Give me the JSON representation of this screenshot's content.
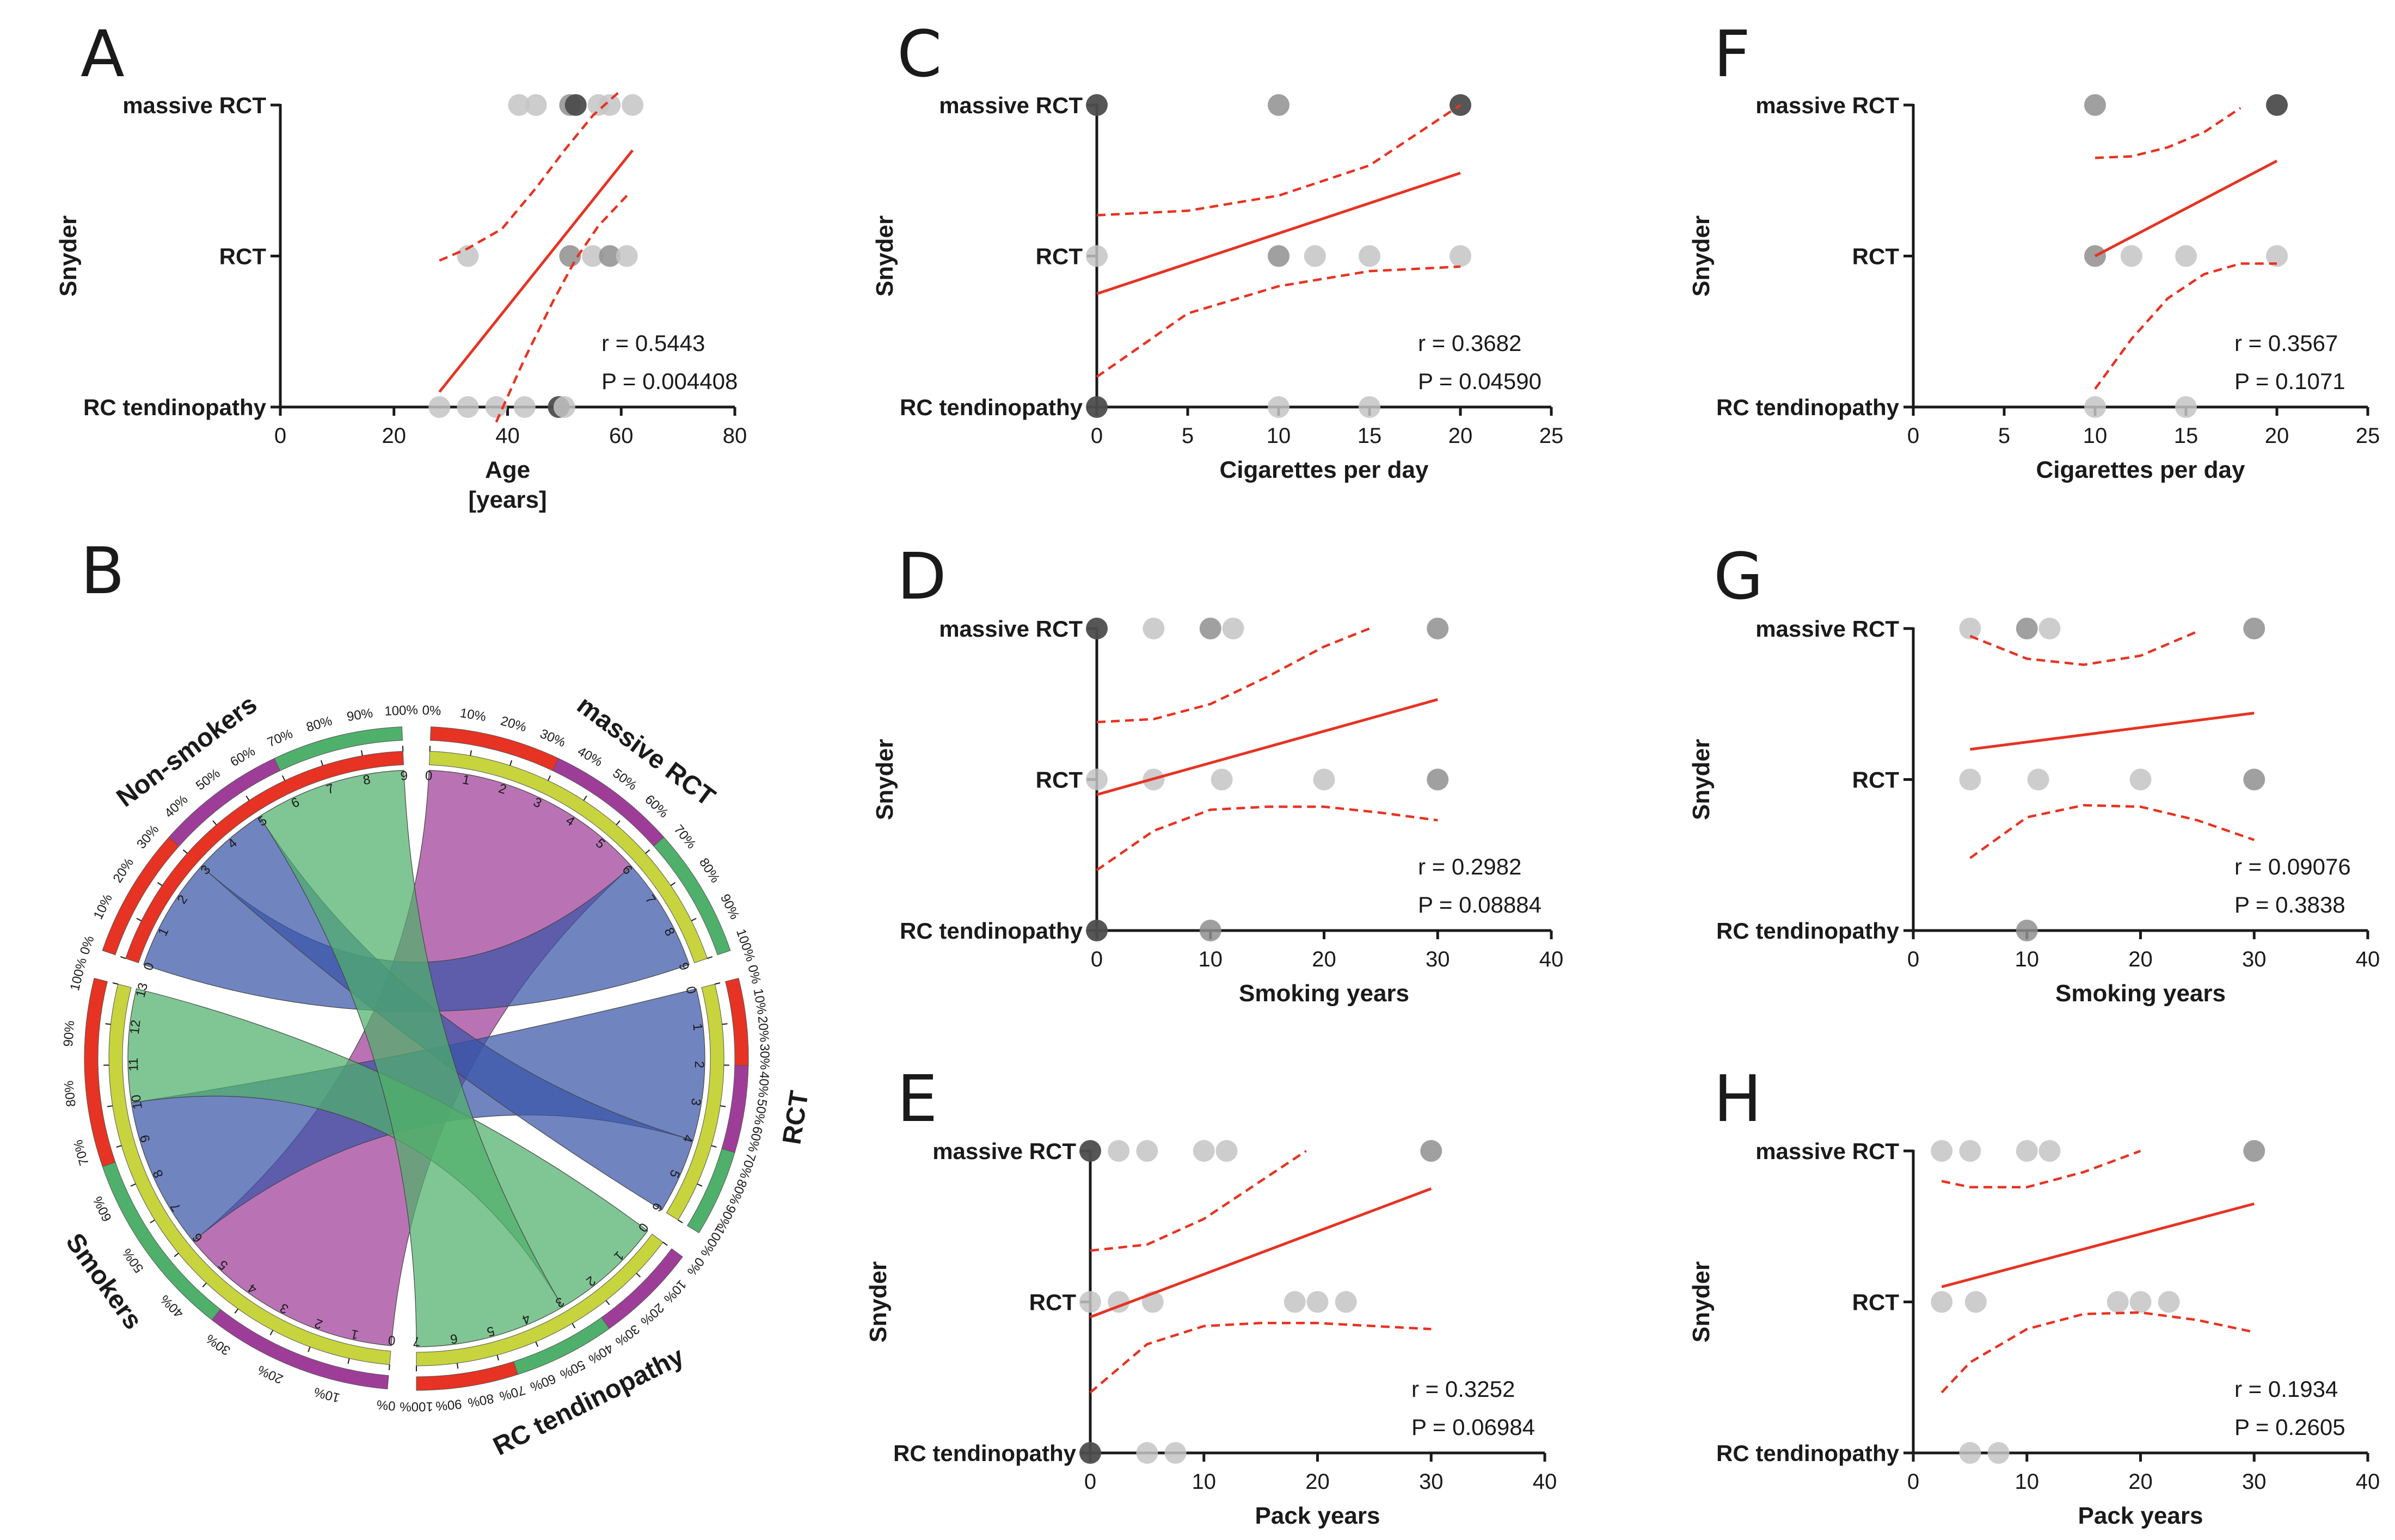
{
  "figure": {
    "colors": {
      "fit_line": "#e63323",
      "axis": "#1a1a1a",
      "point_light": "#c4c4c4",
      "point_mid": "#8f8f8f",
      "point_dark": "#4d4d4d"
    }
  },
  "chart_data": [
    {
      "panel": "A",
      "type": "scatter",
      "title": "",
      "ylabel": "Snyder",
      "xlabel": "Age",
      "xlabel2": "[years]",
      "categories": [
        "RC tendinopathy",
        "RCT",
        "massive RCT"
      ],
      "xlim": [
        0,
        80
      ],
      "xticks": [
        0,
        20,
        40,
        60,
        80
      ],
      "points": [
        {
          "x": 28,
          "y": 0,
          "w": 1
        },
        {
          "x": 33,
          "y": 0,
          "w": 1
        },
        {
          "x": 38,
          "y": 0,
          "w": 1
        },
        {
          "x": 43,
          "y": 0,
          "w": 1
        },
        {
          "x": 49,
          "y": 0,
          "w": 3
        },
        {
          "x": 50,
          "y": 0,
          "w": 1
        },
        {
          "x": 33,
          "y": 1,
          "w": 1
        },
        {
          "x": 51,
          "y": 1,
          "w": 2
        },
        {
          "x": 55,
          "y": 1,
          "w": 1
        },
        {
          "x": 58,
          "y": 1,
          "w": 2
        },
        {
          "x": 61,
          "y": 1,
          "w": 1
        },
        {
          "x": 42,
          "y": 2,
          "w": 1
        },
        {
          "x": 45,
          "y": 2,
          "w": 1
        },
        {
          "x": 51,
          "y": 2,
          "w": 2
        },
        {
          "x": 52,
          "y": 2,
          "w": 3
        },
        {
          "x": 56,
          "y": 2,
          "w": 1
        },
        {
          "x": 58,
          "y": 2,
          "w": 1
        },
        {
          "x": 62,
          "y": 2,
          "w": 1
        }
      ],
      "fit": {
        "x": [
          28,
          62
        ],
        "y": [
          0.1,
          1.7
        ]
      },
      "ci_upper": [
        [
          28,
          0.97
        ],
        [
          33,
          1.05
        ],
        [
          39,
          1.18
        ],
        [
          45,
          1.45
        ],
        [
          50,
          1.7
        ],
        [
          55,
          1.93
        ],
        [
          60,
          2.1
        ]
      ],
      "ci_lower": [
        [
          38,
          -0.1
        ],
        [
          43,
          0.32
        ],
        [
          48,
          0.7
        ],
        [
          52,
          0.98
        ],
        [
          56,
          1.2
        ],
        [
          61,
          1.4
        ]
      ],
      "stats": {
        "r": "r = 0.5443",
        "p": "P = 0.004408"
      }
    },
    {
      "panel": "C",
      "type": "scatter",
      "ylabel": "Snyder",
      "xlabel": "Cigarettes per day",
      "categories": [
        "RC tendinopathy",
        "RCT",
        "massive RCT"
      ],
      "xlim": [
        0,
        25
      ],
      "xticks": [
        0,
        5,
        10,
        15,
        20,
        25
      ],
      "points": [
        {
          "x": 0,
          "y": 0,
          "w": 3
        },
        {
          "x": 10,
          "y": 0,
          "w": 1
        },
        {
          "x": 15,
          "y": 0,
          "w": 1
        },
        {
          "x": 0,
          "y": 1,
          "w": 1
        },
        {
          "x": 10,
          "y": 1,
          "w": 2
        },
        {
          "x": 12,
          "y": 1,
          "w": 1
        },
        {
          "x": 15,
          "y": 1,
          "w": 1
        },
        {
          "x": 20,
          "y": 1,
          "w": 1
        },
        {
          "x": 0,
          "y": 2,
          "w": 3
        },
        {
          "x": 10,
          "y": 2,
          "w": 2
        },
        {
          "x": 20,
          "y": 2,
          "w": 3
        }
      ],
      "fit": {
        "x": [
          0,
          20
        ],
        "y": [
          0.75,
          1.55
        ]
      },
      "ci_upper": [
        [
          0,
          1.27
        ],
        [
          5,
          1.3
        ],
        [
          10,
          1.4
        ],
        [
          15,
          1.6
        ],
        [
          20,
          2.0
        ]
      ],
      "ci_lower": [
        [
          0,
          0.2
        ],
        [
          5,
          0.62
        ],
        [
          10,
          0.8
        ],
        [
          15,
          0.9
        ],
        [
          20,
          0.93
        ]
      ],
      "stats": {
        "r": "r = 0.3682",
        "p": "P = 0.04590"
      }
    },
    {
      "panel": "F",
      "type": "scatter",
      "ylabel": "Snyder",
      "xlabel": "Cigarettes per day",
      "categories": [
        "RC tendinopathy",
        "RCT",
        "massive RCT"
      ],
      "xlim": [
        0,
        25
      ],
      "xticks": [
        0,
        5,
        10,
        15,
        20,
        25
      ],
      "points": [
        {
          "x": 10,
          "y": 0,
          "w": 1
        },
        {
          "x": 15,
          "y": 0,
          "w": 1
        },
        {
          "x": 10,
          "y": 1,
          "w": 2
        },
        {
          "x": 12,
          "y": 1,
          "w": 1
        },
        {
          "x": 15,
          "y": 1,
          "w": 1
        },
        {
          "x": 20,
          "y": 1,
          "w": 1
        },
        {
          "x": 10,
          "y": 2,
          "w": 2
        },
        {
          "x": 20,
          "y": 2,
          "w": 3
        }
      ],
      "fit": {
        "x": [
          10,
          20
        ],
        "y": [
          1.0,
          1.63
        ]
      },
      "ci_upper": [
        [
          10,
          1.65
        ],
        [
          12,
          1.66
        ],
        [
          14,
          1.72
        ],
        [
          16,
          1.82
        ],
        [
          18,
          1.98
        ]
      ],
      "ci_lower": [
        [
          10,
          0.12
        ],
        [
          12,
          0.45
        ],
        [
          14,
          0.72
        ],
        [
          16,
          0.88
        ],
        [
          18,
          0.95
        ],
        [
          20,
          0.95
        ]
      ],
      "stats": {
        "r": "r = 0.3567",
        "p": "P = 0.1071"
      }
    },
    {
      "panel": "D",
      "type": "scatter",
      "ylabel": "Snyder",
      "xlabel": "Smoking years",
      "categories": [
        "RC tendinopathy",
        "RCT",
        "massive RCT"
      ],
      "xlim": [
        0,
        40
      ],
      "xticks": [
        0,
        10,
        20,
        30,
        40
      ],
      "points": [
        {
          "x": 0,
          "y": 0,
          "w": 3
        },
        {
          "x": 10,
          "y": 0,
          "w": 2
        },
        {
          "x": 0,
          "y": 1,
          "w": 1
        },
        {
          "x": 5,
          "y": 1,
          "w": 1
        },
        {
          "x": 11,
          "y": 1,
          "w": 1
        },
        {
          "x": 20,
          "y": 1,
          "w": 1
        },
        {
          "x": 30,
          "y": 1,
          "w": 2
        },
        {
          "x": 0,
          "y": 2,
          "w": 3
        },
        {
          "x": 5,
          "y": 2,
          "w": 1
        },
        {
          "x": 10,
          "y": 2,
          "w": 2
        },
        {
          "x": 12,
          "y": 2,
          "w": 1
        },
        {
          "x": 30,
          "y": 2,
          "w": 2
        }
      ],
      "fit": {
        "x": [
          0,
          30
        ],
        "y": [
          0.9,
          1.53
        ]
      },
      "ci_upper": [
        [
          0,
          1.38
        ],
        [
          5,
          1.4
        ],
        [
          10,
          1.5
        ],
        [
          15,
          1.68
        ],
        [
          20,
          1.88
        ],
        [
          24,
          2.0
        ]
      ],
      "ci_lower": [
        [
          0,
          0.4
        ],
        [
          5,
          0.66
        ],
        [
          10,
          0.8
        ],
        [
          15,
          0.82
        ],
        [
          20,
          0.82
        ],
        [
          25,
          0.78
        ],
        [
          30,
          0.73
        ]
      ],
      "stats": {
        "r": "r = 0.2982",
        "p": "P = 0.08884"
      }
    },
    {
      "panel": "G",
      "type": "scatter",
      "ylabel": "Snyder",
      "xlabel": "Smoking years",
      "categories": [
        "RC tendinopathy",
        "RCT",
        "massive RCT"
      ],
      "xlim": [
        0,
        40
      ],
      "xticks": [
        0,
        10,
        20,
        30,
        40
      ],
      "points": [
        {
          "x": 10,
          "y": 0,
          "w": 2
        },
        {
          "x": 5,
          "y": 1,
          "w": 1
        },
        {
          "x": 11,
          "y": 1,
          "w": 1
        },
        {
          "x": 20,
          "y": 1,
          "w": 1
        },
        {
          "x": 30,
          "y": 1,
          "w": 2
        },
        {
          "x": 5,
          "y": 2,
          "w": 1
        },
        {
          "x": 10,
          "y": 2,
          "w": 2
        },
        {
          "x": 12,
          "y": 2,
          "w": 1
        },
        {
          "x": 30,
          "y": 2,
          "w": 2
        }
      ],
      "fit": {
        "x": [
          5,
          30
        ],
        "y": [
          1.2,
          1.44
        ]
      },
      "ci_upper": [
        [
          5,
          1.95
        ],
        [
          10,
          1.8
        ],
        [
          15,
          1.76
        ],
        [
          20,
          1.82
        ],
        [
          25,
          1.98
        ]
      ],
      "ci_lower": [
        [
          5,
          0.48
        ],
        [
          10,
          0.75
        ],
        [
          15,
          0.83
        ],
        [
          20,
          0.82
        ],
        [
          25,
          0.73
        ],
        [
          30,
          0.6
        ]
      ],
      "stats": {
        "r": "r = 0.09076",
        "p": "P = 0.3838"
      }
    },
    {
      "panel": "E",
      "type": "scatter",
      "ylabel": "Snyder",
      "xlabel": "Pack years",
      "categories": [
        "RC tendinopathy",
        "RCT",
        "massive RCT"
      ],
      "xlim": [
        0,
        40
      ],
      "xticks": [
        0,
        10,
        20,
        30,
        40
      ],
      "points": [
        {
          "x": 0,
          "y": 0,
          "w": 3
        },
        {
          "x": 5,
          "y": 0,
          "w": 1
        },
        {
          "x": 7.5,
          "y": 0,
          "w": 1
        },
        {
          "x": 0,
          "y": 1,
          "w": 1
        },
        {
          "x": 2.5,
          "y": 1,
          "w": 1
        },
        {
          "x": 5.5,
          "y": 1,
          "w": 1
        },
        {
          "x": 18,
          "y": 1,
          "w": 1
        },
        {
          "x": 20,
          "y": 1,
          "w": 1
        },
        {
          "x": 22.5,
          "y": 1,
          "w": 1
        },
        {
          "x": 0,
          "y": 2,
          "w": 3
        },
        {
          "x": 2.5,
          "y": 2,
          "w": 1
        },
        {
          "x": 5,
          "y": 2,
          "w": 1
        },
        {
          "x": 10,
          "y": 2,
          "w": 1
        },
        {
          "x": 12,
          "y": 2,
          "w": 1
        },
        {
          "x": 30,
          "y": 2,
          "w": 2
        }
      ],
      "fit": {
        "x": [
          0,
          30
        ],
        "y": [
          0.9,
          1.75
        ]
      },
      "ci_upper": [
        [
          0,
          1.34
        ],
        [
          5,
          1.38
        ],
        [
          10,
          1.55
        ],
        [
          15,
          1.8
        ],
        [
          19,
          2.0
        ]
      ],
      "ci_lower": [
        [
          0,
          0.4
        ],
        [
          5,
          0.72
        ],
        [
          10,
          0.84
        ],
        [
          15,
          0.86
        ],
        [
          20,
          0.86
        ],
        [
          25,
          0.84
        ],
        [
          30,
          0.82
        ]
      ],
      "stats": {
        "r": "r = 0.3252",
        "p": "P = 0.06984"
      }
    },
    {
      "panel": "H",
      "type": "scatter",
      "ylabel": "Snyder",
      "xlabel": "Pack years",
      "categories": [
        "RC tendinopathy",
        "RCT",
        "massive RCT"
      ],
      "xlim": [
        0,
        40
      ],
      "xticks": [
        0,
        10,
        20,
        30,
        40
      ],
      "points": [
        {
          "x": 5,
          "y": 0,
          "w": 1
        },
        {
          "x": 7.5,
          "y": 0,
          "w": 1
        },
        {
          "x": 2.5,
          "y": 1,
          "w": 1
        },
        {
          "x": 5.5,
          "y": 1,
          "w": 1
        },
        {
          "x": 18,
          "y": 1,
          "w": 1
        },
        {
          "x": 20,
          "y": 1,
          "w": 1
        },
        {
          "x": 22.5,
          "y": 1,
          "w": 1
        },
        {
          "x": 2.5,
          "y": 2,
          "w": 1
        },
        {
          "x": 5,
          "y": 2,
          "w": 1
        },
        {
          "x": 10,
          "y": 2,
          "w": 1
        },
        {
          "x": 12,
          "y": 2,
          "w": 1
        },
        {
          "x": 30,
          "y": 2,
          "w": 2
        }
      ],
      "fit": {
        "x": [
          2.5,
          30
        ],
        "y": [
          1.1,
          1.65
        ]
      },
      "ci_upper": [
        [
          2.5,
          1.8
        ],
        [
          5,
          1.76
        ],
        [
          10,
          1.76
        ],
        [
          15,
          1.86
        ],
        [
          20,
          2.0
        ]
      ],
      "ci_lower": [
        [
          2.5,
          0.4
        ],
        [
          5,
          0.6
        ],
        [
          10,
          0.82
        ],
        [
          15,
          0.92
        ],
        [
          20,
          0.93
        ],
        [
          25,
          0.88
        ],
        [
          30,
          0.8
        ]
      ],
      "stats": {
        "r": "r = 0.1934",
        "p": "P = 0.2605"
      }
    },
    {
      "panel": "B",
      "type": "chord",
      "groups": [
        {
          "name": "massive RCT",
          "total": 9
        },
        {
          "name": "RCT",
          "total": 6
        },
        {
          "name": "RC tendinopathy",
          "total": 7
        },
        {
          "name": "Smokers",
          "total": 13
        },
        {
          "name": "Non-smokers",
          "total": 9
        }
      ],
      "links": [
        {
          "from": "massive RCT",
          "to": "Smokers",
          "value": 6,
          "color": "#9e3d98"
        },
        {
          "from": "massive RCT",
          "to": "Non-smokers",
          "value": 3,
          "color": "#3955a8"
        },
        {
          "from": "RCT",
          "to": "Smokers",
          "value": 4,
          "color": "#3955a8"
        },
        {
          "from": "RCT",
          "to": "Non-smokers",
          "value": 2,
          "color": "#3955a8"
        },
        {
          "from": "RC tendinopathy",
          "to": "Smokers",
          "value": 3,
          "color": "#4fb06b"
        },
        {
          "from": "RC tendinopathy",
          "to": "Non-smokers",
          "value": 4,
          "color": "#4fb06b"
        }
      ],
      "percent_ticks": [
        "0%",
        "10%",
        "20%",
        "30%",
        "40%",
        "50%",
        "60%",
        "70%",
        "80%",
        "90%",
        "100%"
      ]
    }
  ]
}
